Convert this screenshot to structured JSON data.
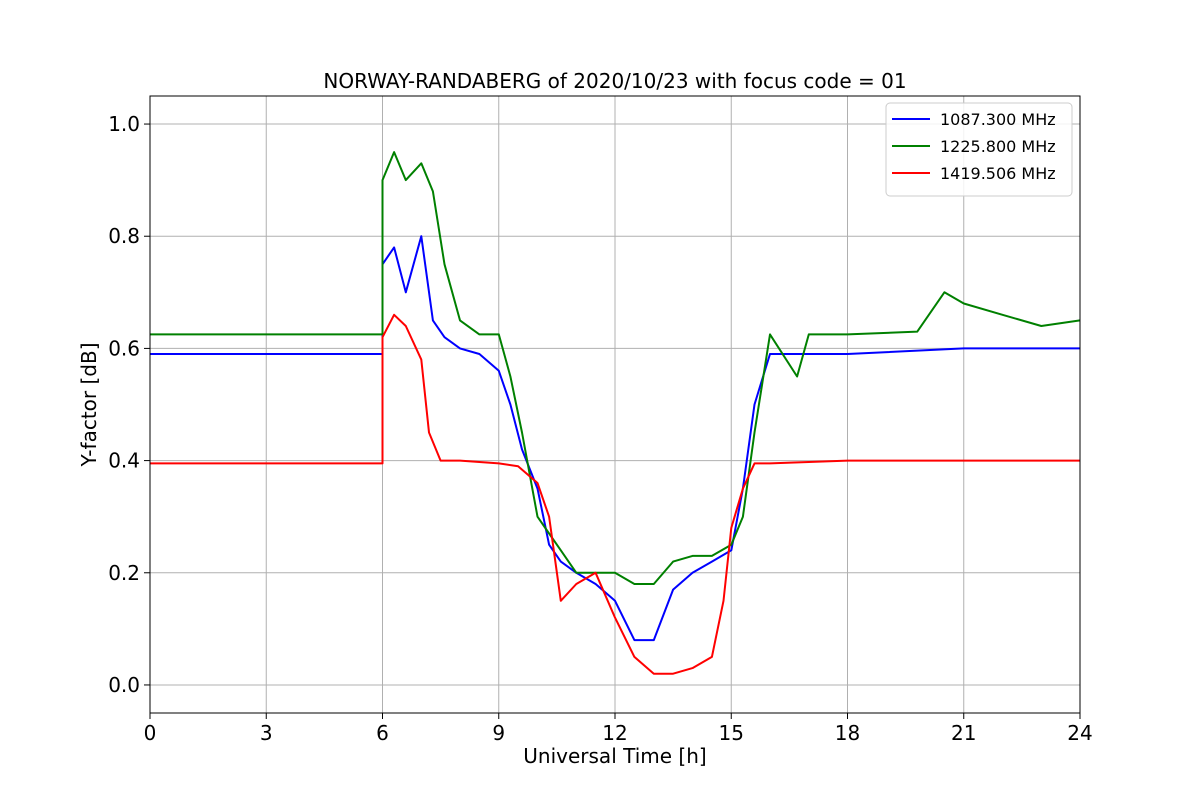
{
  "chart_data": {
    "type": "line",
    "title": "NORWAY-RANDABERG of 2020/10/23 with focus code = 01",
    "xlabel": "Universal Time [h]",
    "ylabel": "Y-factor [dB]",
    "xlim": [
      0,
      24
    ],
    "ylim": [
      -0.05,
      1.05
    ],
    "xticks": [
      0,
      3,
      6,
      9,
      12,
      15,
      18,
      21,
      24
    ],
    "xtick_labels": [
      "0",
      "3",
      "6",
      "9",
      "12",
      "15",
      "18",
      "21",
      "24"
    ],
    "yticks": [
      0.0,
      0.2,
      0.4,
      0.6,
      0.8,
      1.0
    ],
    "ytick_labels": [
      "0.0",
      "0.2",
      "0.4",
      "0.6",
      "0.8",
      "1.0"
    ],
    "grid": true,
    "legend_position": "top-right",
    "series": [
      {
        "name": "1087.300 MHz",
        "color": "#0000ff",
        "points": [
          [
            0,
            0.59
          ],
          [
            6,
            0.59
          ],
          [
            6.0,
            0.75
          ],
          [
            6.3,
            0.78
          ],
          [
            6.6,
            0.7
          ],
          [
            7.0,
            0.8
          ],
          [
            7.3,
            0.65
          ],
          [
            7.6,
            0.62
          ],
          [
            8.0,
            0.6
          ],
          [
            8.5,
            0.59
          ],
          [
            9.0,
            0.56
          ],
          [
            9.3,
            0.5
          ],
          [
            9.6,
            0.42
          ],
          [
            10.0,
            0.35
          ],
          [
            10.3,
            0.25
          ],
          [
            10.6,
            0.22
          ],
          [
            11.0,
            0.2
          ],
          [
            11.5,
            0.18
          ],
          [
            12.0,
            0.15
          ],
          [
            12.5,
            0.08
          ],
          [
            13.0,
            0.08
          ],
          [
            13.5,
            0.17
          ],
          [
            14.0,
            0.2
          ],
          [
            14.5,
            0.22
          ],
          [
            15.0,
            0.24
          ],
          [
            15.3,
            0.35
          ],
          [
            15.6,
            0.5
          ],
          [
            16.0,
            0.59
          ],
          [
            17,
            0.59
          ],
          [
            18,
            0.59
          ],
          [
            21,
            0.6
          ],
          [
            24,
            0.6
          ]
        ]
      },
      {
        "name": "1225.800 MHz",
        "color": "#008000",
        "points": [
          [
            0,
            0.625
          ],
          [
            6,
            0.625
          ],
          [
            6.0,
            0.9
          ],
          [
            6.3,
            0.95
          ],
          [
            6.6,
            0.9
          ],
          [
            7.0,
            0.93
          ],
          [
            7.3,
            0.88
          ],
          [
            7.6,
            0.75
          ],
          [
            8.0,
            0.65
          ],
          [
            8.5,
            0.625
          ],
          [
            9.0,
            0.625
          ],
          [
            9.3,
            0.55
          ],
          [
            9.6,
            0.45
          ],
          [
            10.0,
            0.3
          ],
          [
            10.3,
            0.27
          ],
          [
            10.6,
            0.24
          ],
          [
            11.0,
            0.2
          ],
          [
            11.5,
            0.2
          ],
          [
            12.0,
            0.2
          ],
          [
            12.5,
            0.18
          ],
          [
            13.0,
            0.18
          ],
          [
            13.5,
            0.22
          ],
          [
            14.0,
            0.23
          ],
          [
            14.5,
            0.23
          ],
          [
            15.0,
            0.25
          ],
          [
            15.3,
            0.3
          ],
          [
            15.6,
            0.45
          ],
          [
            16.0,
            0.625
          ],
          [
            16.7,
            0.55
          ],
          [
            17,
            0.625
          ],
          [
            18,
            0.625
          ],
          [
            19.8,
            0.63
          ],
          [
            20.5,
            0.7
          ],
          [
            21,
            0.68
          ],
          [
            22,
            0.66
          ],
          [
            23,
            0.64
          ],
          [
            24,
            0.65
          ]
        ]
      },
      {
        "name": "1419.506 MHz",
        "color": "#ff0000",
        "points": [
          [
            0,
            0.395
          ],
          [
            6,
            0.395
          ],
          [
            6.0,
            0.62
          ],
          [
            6.3,
            0.66
          ],
          [
            6.6,
            0.64
          ],
          [
            7.0,
            0.58
          ],
          [
            7.2,
            0.45
          ],
          [
            7.5,
            0.4
          ],
          [
            8.0,
            0.4
          ],
          [
            9.0,
            0.395
          ],
          [
            9.5,
            0.39
          ],
          [
            10.0,
            0.36
          ],
          [
            10.3,
            0.3
          ],
          [
            10.6,
            0.15
          ],
          [
            11.0,
            0.18
          ],
          [
            11.5,
            0.2
          ],
          [
            12.0,
            0.12
          ],
          [
            12.5,
            0.05
          ],
          [
            13.0,
            0.02
          ],
          [
            13.5,
            0.02
          ],
          [
            14.0,
            0.03
          ],
          [
            14.5,
            0.05
          ],
          [
            14.8,
            0.15
          ],
          [
            15.0,
            0.28
          ],
          [
            15.3,
            0.35
          ],
          [
            15.6,
            0.395
          ],
          [
            16,
            0.395
          ],
          [
            18,
            0.4
          ],
          [
            21,
            0.4
          ],
          [
            24,
            0.4
          ]
        ]
      }
    ]
  }
}
